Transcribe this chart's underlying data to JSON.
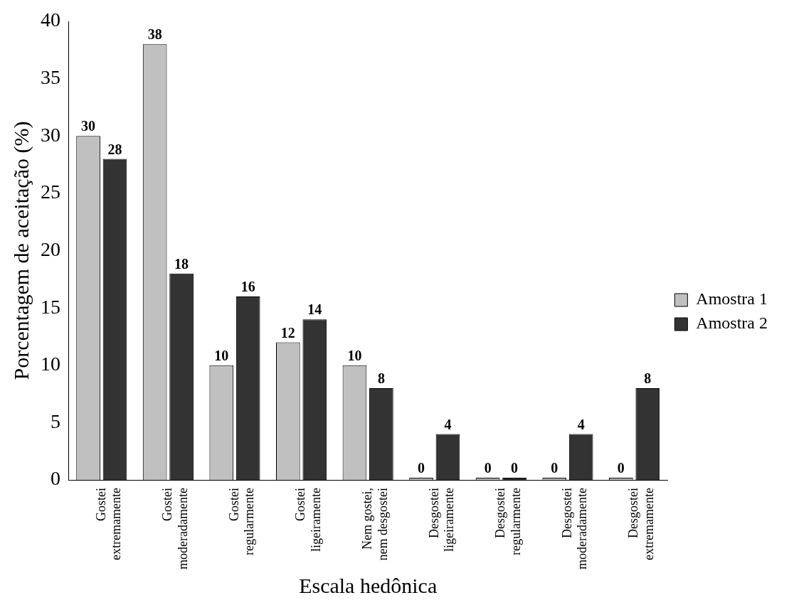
{
  "chart_data": {
    "type": "bar",
    "xlabel": "Escala hedônica",
    "ylabel": "Porcentagem de aceitação (%)",
    "categories": [
      "Gostei extremamente",
      "Gostei moderadamente",
      "Gostei regularmente",
      "Gostei ligeiramente",
      "Nem gostei, nem desgostei",
      "Desgostei ligeiramente",
      "Desgostei regularmente",
      "Desgostei moderadamente",
      "Desgostei extremamente"
    ],
    "series": [
      {
        "name": "Amostra 1",
        "color": "#c0c0c0",
        "values": [
          30,
          38,
          10,
          12,
          10,
          0,
          0,
          0,
          0
        ]
      },
      {
        "name": "Amostra 2",
        "color": "#333333",
        "values": [
          28,
          18,
          16,
          14,
          8,
          4,
          0,
          4,
          8
        ]
      }
    ],
    "ylim": [
      0,
      40
    ],
    "yticks": [
      0,
      5,
      10,
      15,
      20,
      25,
      30,
      35,
      40
    ],
    "grid": false,
    "legend": "right",
    "data_labels": true
  }
}
